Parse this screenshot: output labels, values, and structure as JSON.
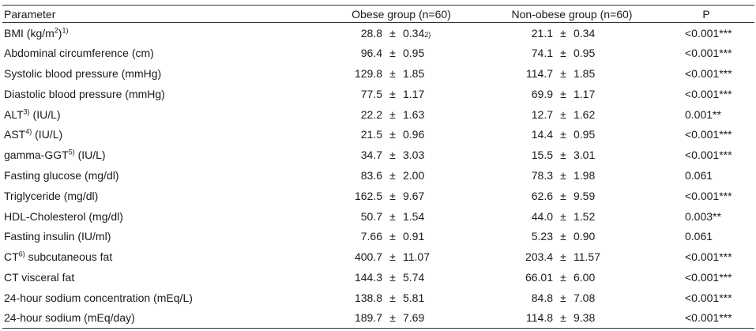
{
  "table": {
    "header": {
      "parameter": "Parameter",
      "obese": "Obese group (n=60)",
      "non_obese": "Non-obese group (n=60)",
      "p": "P"
    },
    "rows": [
      {
        "label": "BMI (kg/m",
        "sup1": "2",
        "label2": ")",
        "sup2": "1)",
        "label3": "",
        "om": "28.8",
        "osd": "0.34",
        "osup": "2)",
        "nm": "21.1",
        "nsd": "0.34",
        "p": "<0.001***"
      },
      {
        "label": "Abdominal circumference (cm)",
        "om": "96.4",
        "osd": "0.95",
        "nm": "74.1",
        "nsd": "0.95",
        "p": "<0.001***"
      },
      {
        "label": "Systolic blood pressure (mmHg)",
        "om": "129.8",
        "osd": "1.85",
        "nm": "114.7",
        "nsd": "1.85",
        "p": "<0.001***"
      },
      {
        "label": "Diastolic blood pressure (mmHg)",
        "om": "77.5",
        "osd": "1.17",
        "nm": "69.9",
        "nsd": "1.17",
        "p": "<0.001***"
      },
      {
        "label": "ALT",
        "sup1": "3)",
        "label2": " (IU/L)",
        "om": "22.2",
        "osd": "1.63",
        "nm": "12.7",
        "nsd": "1.62",
        "p": "0.001**"
      },
      {
        "label": "AST",
        "sup1": "4)",
        "label2": " (IU/L)",
        "om": "21.5",
        "osd": "0.96",
        "nm": "14.4",
        "nsd": "0.95",
        "p": "<0.001***"
      },
      {
        "label": "gamma-GGT",
        "sup1": "5)",
        "label2": " (IU/L)",
        "om": "34.7",
        "osd": "3.03",
        "nm": "15.5",
        "nsd": "3.01",
        "p": "<0.001***"
      },
      {
        "label": "Fasting glucose (mg/dl)",
        "om": "83.6",
        "osd": "2.00",
        "nm": "78.3",
        "nsd": "1.98",
        "p": "0.061"
      },
      {
        "label": "Triglyceride (mg/dl)",
        "om": "162.5",
        "osd": "9.67",
        "nm": "62.6",
        "nsd": "9.59",
        "p": "<0.001***"
      },
      {
        "label": "HDL-Cholesterol (mg/dl)",
        "om": "50.7",
        "osd": "1.54",
        "nm": "44.0",
        "nsd": "1.52",
        "p": "0.003**"
      },
      {
        "label": "Fasting insulin (IU/ml)",
        "om": "7.66",
        "osd": "0.91",
        "nm": "5.23",
        "nsd": "0.90",
        "p": "0.061"
      },
      {
        "label": "CT",
        "sup1": "6)",
        "label2": " subcutaneous fat",
        "om": "400.7",
        "osd": "11.07",
        "nm": "203.4",
        "nsd": "11.57",
        "p": "<0.001***"
      },
      {
        "label": "CT visceral fat",
        "om": "144.3",
        "osd": "5.74",
        "nm": "66.01",
        "nsd": "6.00",
        "p": "<0.001***"
      },
      {
        "label": "24-hour sodium concentration (mEq/L)",
        "om": "138.8",
        "osd": "5.81",
        "nm": "84.8",
        "nsd": "7.08",
        "p": "<0.001***"
      },
      {
        "label": "24-hour sodium (mEq/day)",
        "om": "189.7",
        "osd": "7.69",
        "nm": "114.8",
        "nsd": "9.38",
        "p": "<0.001***"
      }
    ],
    "pm_symbol": "±"
  }
}
